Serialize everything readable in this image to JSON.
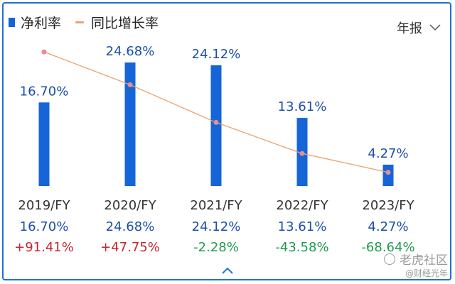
{
  "legend": {
    "bar_label": "净利率",
    "line_label": "同比增长率"
  },
  "period_select": {
    "value": "年报"
  },
  "watermark": {
    "text": "老虎社区",
    "subtext": "@财经光年"
  },
  "colors": {
    "bar": "#1565d8",
    "line": "#e9a26d",
    "positive": "#c6262e",
    "negative": "#1f9a4d",
    "value_text": "#1b4fa8"
  },
  "chart_data": {
    "type": "bar",
    "categories": [
      "2019/FY",
      "2020/FY",
      "2021/FY",
      "2022/FY",
      "2023/FY"
    ],
    "series": [
      {
        "name": "净利率",
        "type": "bar",
        "values": [
          16.7,
          24.68,
          24.12,
          13.61,
          4.27
        ],
        "labels": [
          "16.70%",
          "24.68%",
          "24.12%",
          "13.61%",
          "4.27%"
        ]
      },
      {
        "name": "同比增长率",
        "type": "line",
        "values": [
          91.41,
          47.75,
          -2.28,
          -43.58,
          -68.64
        ],
        "labels": [
          "+91.41%",
          "+47.75%",
          "-2.28%",
          "-43.58%",
          "-68.64%"
        ]
      }
    ],
    "legend_position": "top-left",
    "grid": false
  }
}
